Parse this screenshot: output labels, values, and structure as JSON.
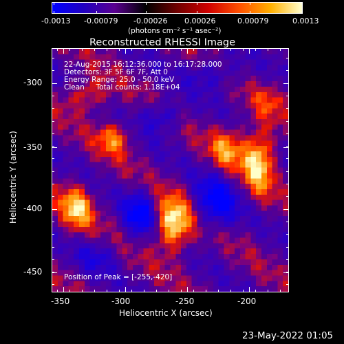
{
  "colorbar": {
    "ticks": [
      "-0.0013",
      "-0.00079",
      "-0.00026",
      "0.00026",
      "0.00079",
      "0.0013"
    ],
    "units": "(photons cm⁻² s⁻¹ asec⁻²)",
    "gradient_colors": [
      "#0000ff",
      "#2000c0",
      "#5a0090",
      "#000000",
      "#700000",
      "#d00000",
      "#ff5000",
      "#ffb000",
      "#ffffd0"
    ]
  },
  "title": "Reconstructed RHESSI Image",
  "overlay": {
    "time": "22-Aug-2015 16:12:36.000 to 16:17:28.000",
    "detectors": "Detectors: 3F 5F 6F 7F, Att 0",
    "energy": "Energy Range: 25.0 - 50.0 keV",
    "clean": "Clean     Total counts: 1.18E+04",
    "peak": "Position of Peak = [-255,-420]"
  },
  "axes": {
    "xlabel": "Heliocentric X (arcsec)",
    "ylabel": "Heliocentric Y (arcsec)",
    "xticks": [
      "-350",
      "-300",
      "-250",
      "-200"
    ],
    "yticks": [
      "-300",
      "-350",
      "-400",
      "-450"
    ]
  },
  "footer": {
    "date": "23-May-2022 01:05"
  }
}
